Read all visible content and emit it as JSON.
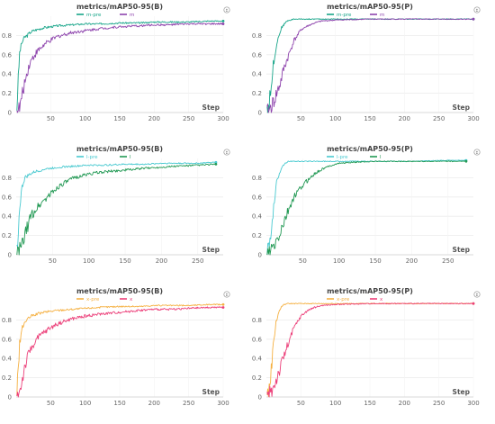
{
  "figure": {
    "panels_note": "",
    "grid": true
  },
  "chart_data": [
    {
      "type": "line",
      "title": "metrics/mAP50-95(B)",
      "xlabel": "Step",
      "ylabel": "",
      "xlim": [
        0,
        300
      ],
      "ylim": [
        0,
        1
      ],
      "xticks": [
        50,
        100,
        150,
        200,
        250,
        300
      ],
      "yticks": [
        0,
        0.2,
        0.4,
        0.6,
        0.8
      ],
      "legend_position": "top",
      "series": [
        {
          "name": "m-pre",
          "color": "#17a589",
          "x": [
            1,
            3,
            5,
            8,
            12,
            16,
            20,
            25,
            30,
            40,
            50,
            60,
            80,
            100,
            120,
            150,
            180,
            200,
            220,
            250,
            280,
            300
          ],
          "values": [
            0.05,
            0.35,
            0.62,
            0.72,
            0.78,
            0.8,
            0.83,
            0.85,
            0.86,
            0.88,
            0.89,
            0.9,
            0.91,
            0.92,
            0.92,
            0.93,
            0.93,
            0.94,
            0.94,
            0.94,
            0.95,
            0.95
          ]
        },
        {
          "name": "m",
          "color": "#8e44ad",
          "x": [
            1,
            3,
            5,
            8,
            12,
            16,
            20,
            25,
            30,
            40,
            50,
            60,
            80,
            100,
            120,
            150,
            180,
            200,
            220,
            250,
            280,
            300
          ],
          "values": [
            0.0,
            0.02,
            0.05,
            0.15,
            0.3,
            0.42,
            0.52,
            0.58,
            0.63,
            0.7,
            0.75,
            0.79,
            0.83,
            0.85,
            0.87,
            0.89,
            0.9,
            0.91,
            0.91,
            0.92,
            0.92,
            0.92
          ]
        }
      ]
    },
    {
      "type": "line",
      "title": "metrics/mAP50-95(P)",
      "xlabel": "Step",
      "ylabel": "",
      "xlim": [
        0,
        300
      ],
      "ylim": [
        0,
        1
      ],
      "xticks": [
        50,
        100,
        150,
        200,
        250,
        300
      ],
      "yticks": [
        0,
        0.2,
        0.4,
        0.6,
        0.8
      ],
      "legend_position": "top",
      "series": [
        {
          "name": "m-pre",
          "color": "#17a589",
          "x": [
            1,
            3,
            5,
            8,
            10,
            14,
            18,
            22,
            26,
            30,
            35,
            40,
            50,
            60,
            80,
            100,
            150,
            200,
            250,
            300
          ],
          "values": [
            0.05,
            0.06,
            0.15,
            0.35,
            0.5,
            0.68,
            0.8,
            0.88,
            0.92,
            0.95,
            0.96,
            0.97,
            0.97,
            0.97,
            0.97,
            0.97,
            0.97,
            0.97,
            0.97,
            0.97
          ]
        },
        {
          "name": "m",
          "color": "#8e44ad",
          "x": [
            1,
            3,
            6,
            10,
            15,
            20,
            25,
            30,
            35,
            40,
            45,
            50,
            60,
            70,
            80,
            100,
            150,
            200,
            250,
            300
          ],
          "values": [
            0.0,
            0.0,
            0.05,
            0.1,
            0.2,
            0.3,
            0.45,
            0.55,
            0.65,
            0.75,
            0.8,
            0.86,
            0.9,
            0.93,
            0.95,
            0.96,
            0.97,
            0.97,
            0.97,
            0.97
          ]
        }
      ]
    },
    {
      "type": "line",
      "title": "metrics/mAP50-95(B)",
      "xlabel": "Step",
      "ylabel": "",
      "xlim": [
        0,
        285
      ],
      "ylim": [
        0,
        1
      ],
      "xticks": [
        50,
        100,
        150,
        200,
        250
      ],
      "yticks": [
        0,
        0.2,
        0.4,
        0.6,
        0.8
      ],
      "legend_position": "top",
      "series": [
        {
          "name": "l-pre",
          "color": "#48c9d0",
          "x": [
            1,
            3,
            5,
            8,
            12,
            16,
            20,
            25,
            30,
            40,
            50,
            60,
            80,
            100,
            120,
            150,
            180,
            200,
            220,
            250,
            275
          ],
          "values": [
            0.05,
            0.25,
            0.5,
            0.7,
            0.8,
            0.82,
            0.84,
            0.86,
            0.87,
            0.89,
            0.9,
            0.91,
            0.92,
            0.93,
            0.93,
            0.94,
            0.94,
            0.95,
            0.95,
            0.95,
            0.96
          ]
        },
        {
          "name": "l",
          "color": "#229954",
          "x": [
            1,
            3,
            5,
            8,
            12,
            16,
            20,
            25,
            30,
            40,
            50,
            60,
            80,
            100,
            120,
            150,
            180,
            200,
            220,
            250,
            275
          ],
          "values": [
            0.0,
            0.02,
            0.05,
            0.1,
            0.2,
            0.3,
            0.4,
            0.45,
            0.5,
            0.58,
            0.65,
            0.72,
            0.8,
            0.84,
            0.86,
            0.88,
            0.9,
            0.91,
            0.92,
            0.93,
            0.94
          ]
        }
      ]
    },
    {
      "type": "line",
      "title": "metrics/mAP50-95(P)",
      "xlabel": "Step",
      "ylabel": "",
      "xlim": [
        0,
        285
      ],
      "ylim": [
        0,
        1
      ],
      "xticks": [
        50,
        100,
        150,
        200,
        250
      ],
      "yticks": [
        0,
        0.2,
        0.4,
        0.6,
        0.8
      ],
      "legend_position": "top",
      "series": [
        {
          "name": "l-pre",
          "color": "#48c9d0",
          "x": [
            1,
            3,
            5,
            8,
            10,
            14,
            18,
            22,
            26,
            30,
            40,
            50,
            60,
            80,
            100,
            150,
            200,
            250,
            275
          ],
          "values": [
            0.02,
            0.05,
            0.15,
            0.35,
            0.5,
            0.75,
            0.85,
            0.92,
            0.95,
            0.97,
            0.97,
            0.97,
            0.97,
            0.97,
            0.97,
            0.97,
            0.97,
            0.98,
            0.98
          ]
        },
        {
          "name": "l",
          "color": "#229954",
          "x": [
            1,
            5,
            10,
            15,
            20,
            25,
            30,
            35,
            40,
            50,
            60,
            70,
            80,
            90,
            100,
            120,
            150,
            200,
            250,
            275
          ],
          "values": [
            0.0,
            0.02,
            0.08,
            0.15,
            0.25,
            0.35,
            0.45,
            0.55,
            0.62,
            0.72,
            0.8,
            0.86,
            0.9,
            0.93,
            0.95,
            0.96,
            0.97,
            0.97,
            0.97,
            0.97
          ]
        }
      ]
    },
    {
      "type": "line",
      "title": "metrics/mAP50-95(B)",
      "xlabel": "Step",
      "ylabel": "",
      "xlim": [
        0,
        300
      ],
      "ylim": [
        0,
        1
      ],
      "xticks": [
        50,
        100,
        150,
        200,
        250,
        300
      ],
      "yticks": [
        0,
        0.2,
        0.4,
        0.6,
        0.8
      ],
      "legend_position": "top",
      "series": [
        {
          "name": "x-pre",
          "color": "#f5b041",
          "x": [
            1,
            3,
            5,
            8,
            12,
            16,
            20,
            25,
            30,
            40,
            50,
            60,
            80,
            100,
            120,
            150,
            180,
            200,
            220,
            250,
            280,
            300
          ],
          "values": [
            0.05,
            0.3,
            0.55,
            0.7,
            0.77,
            0.8,
            0.83,
            0.85,
            0.86,
            0.88,
            0.89,
            0.9,
            0.91,
            0.92,
            0.93,
            0.94,
            0.94,
            0.95,
            0.95,
            0.95,
            0.96,
            0.96
          ]
        },
        {
          "name": "x",
          "color": "#ec407a",
          "x": [
            1,
            3,
            5,
            8,
            12,
            16,
            20,
            25,
            30,
            40,
            50,
            60,
            80,
            100,
            120,
            150,
            180,
            200,
            220,
            250,
            280,
            300
          ],
          "values": [
            0.0,
            0.02,
            0.05,
            0.15,
            0.3,
            0.4,
            0.48,
            0.55,
            0.6,
            0.67,
            0.72,
            0.76,
            0.81,
            0.84,
            0.86,
            0.88,
            0.9,
            0.91,
            0.91,
            0.92,
            0.93,
            0.93
          ]
        }
      ]
    },
    {
      "type": "line",
      "title": "metrics/mAP50-95(P)",
      "xlabel": "Step",
      "ylabel": "",
      "xlim": [
        0,
        300
      ],
      "ylim": [
        0,
        1
      ],
      "xticks": [
        50,
        100,
        150,
        200,
        250,
        300
      ],
      "yticks": [
        0,
        0.2,
        0.4,
        0.6,
        0.8
      ],
      "legend_position": "top",
      "series": [
        {
          "name": "x-pre",
          "color": "#f5b041",
          "x": [
            1,
            3,
            5,
            8,
            10,
            14,
            18,
            22,
            26,
            30,
            40,
            50,
            60,
            80,
            100,
            150,
            200,
            250,
            300
          ],
          "values": [
            0.02,
            0.05,
            0.15,
            0.35,
            0.55,
            0.78,
            0.88,
            0.94,
            0.96,
            0.97,
            0.97,
            0.97,
            0.97,
            0.97,
            0.97,
            0.97,
            0.97,
            0.97,
            0.97
          ]
        },
        {
          "name": "x",
          "color": "#ec407a",
          "x": [
            1,
            3,
            6,
            10,
            15,
            20,
            25,
            30,
            35,
            40,
            45,
            50,
            60,
            70,
            80,
            100,
            150,
            200,
            250,
            300
          ],
          "values": [
            0.0,
            0.0,
            0.05,
            0.1,
            0.2,
            0.3,
            0.42,
            0.52,
            0.62,
            0.72,
            0.78,
            0.84,
            0.9,
            0.93,
            0.95,
            0.96,
            0.97,
            0.97,
            0.97,
            0.97
          ]
        }
      ]
    }
  ]
}
